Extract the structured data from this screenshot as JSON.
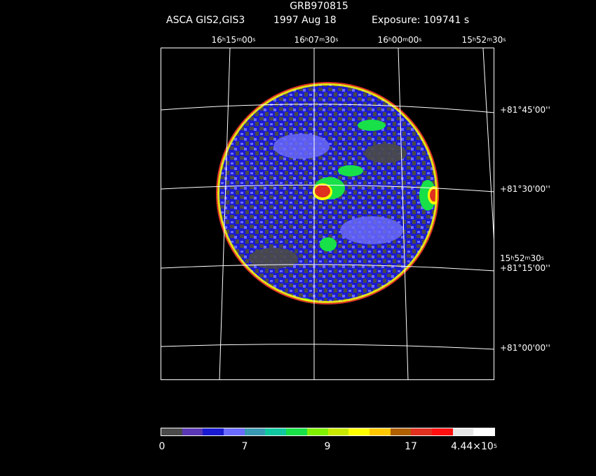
{
  "title": "GRB970815",
  "subtitle": {
    "instrument": "ASCA GIS2,GIS3",
    "date": "1997 Aug 18",
    "exposure": "Exposure: 109741 s"
  },
  "ra_labels": [
    {
      "h": "16",
      "m": "15",
      "s": "00"
    },
    {
      "h": "16",
      "m": "07",
      "s": "30"
    },
    {
      "h": "16",
      "m": "00",
      "s": "00"
    },
    {
      "h": "15",
      "m": "52",
      "s": "30"
    }
  ],
  "ra_side_label": {
    "h": "15",
    "m": "52",
    "s": "30"
  },
  "dec_labels": [
    "+81°45'00''",
    "+81°30'00''",
    "+81°15'00''",
    "+81°00'00''"
  ],
  "colorbar": {
    "colors": [
      "#4a4a4a",
      "#5a37b4",
      "#1a1ad2",
      "#6b6bff",
      "#3a9ab4",
      "#10c8a0",
      "#18e048",
      "#80f000",
      "#c8e800",
      "#ffff00",
      "#ffc800",
      "#b06000",
      "#e03020",
      "#ff1010",
      "#e6e6e6",
      "#ffffff"
    ],
    "labels": [
      "0",
      "7",
      "9",
      "17"
    ],
    "max_label_base": "4.44×10",
    "max_label_exp": "5"
  },
  "image_colors": {
    "background": "#000000",
    "low": "#4a4a4a",
    "base": "#1a1ad2",
    "mid": "#6b6bff",
    "green": "#18e048",
    "yellow": "#ffff00",
    "orange": "#ffc800",
    "red": "#e03020",
    "grid": "#ffffff"
  }
}
